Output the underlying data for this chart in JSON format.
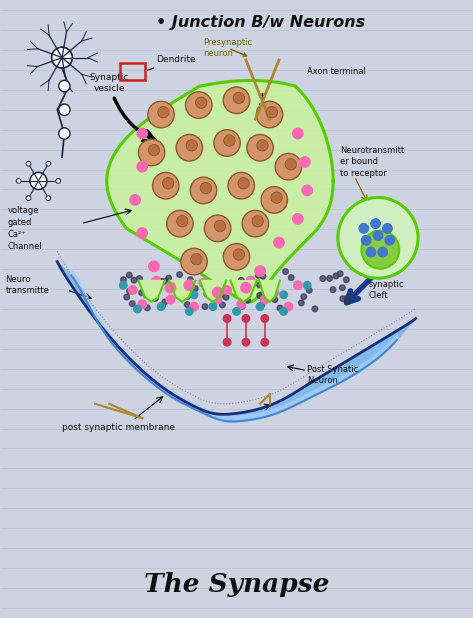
{
  "title": "• Junction B/w Neurons",
  "subtitle": "The Synapse",
  "bg_color": "#cdd3e0",
  "line_color": "#b0b8cc",
  "labels": {
    "presynaptic": "Presynaptic\nneuron",
    "dendrite": "Dendrite",
    "axon_terminal": "Axon terminal",
    "synaptic_vesicle": "Synaptic\nvesicle",
    "neurotransmitter": "Neurotransmitt\ner bound\nto receptor",
    "voltage_gated": "voltage\ngated\nCa²⁺\nChannel",
    "neuro_transmitt": "Neuro\ntransmitte",
    "synaptic_cleft": "synaptic\nCleft",
    "post_synaptic_neuron": "Post Synatic\nNeuron",
    "post_synaptic_membrane": "post synaptic membrane"
  },
  "colors": {
    "green_outline": "#55cc00",
    "green_fill": "#c8f0a0",
    "vesicle_fill": "#d4956a",
    "vesicle_outline": "#8b5a2b",
    "pink_dot": "#ff69b4",
    "blue_arrow": "#1a3a8a",
    "blue_membrane": "#4488cc",
    "blue_dark": "#1a2d7a",
    "blue_light": "#88bbee",
    "teal_dot": "#4499bb",
    "purple_dot": "#8844aa",
    "robot_color": "#1a2244",
    "red_box": "#cc2222",
    "arrow_color": "#111111",
    "text_color": "#111111",
    "title_color": "#111111",
    "tan_line": "#aa8833"
  }
}
